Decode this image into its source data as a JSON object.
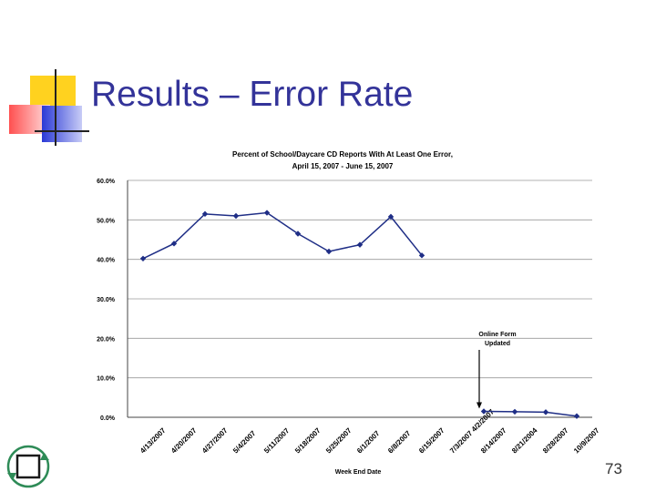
{
  "slide": {
    "title": "Results – Error Rate",
    "page_number": "73"
  },
  "colors": {
    "title": "#333399",
    "line": "#1f2e86",
    "deco_yellow": "#ffd21f",
    "deco_red": "#ff5050",
    "deco_blue": "#2a39d6"
  },
  "chart_data": {
    "type": "line",
    "title": "Percent of School/Daycare CD Reports With At Least One Error, April 15, 2007 - June 15, 2007",
    "title_lines": [
      "Percent of School/Daycare CD Reports With At Least One Error,",
      "April 15, 2007 - June 15, 2007"
    ],
    "xlabel": "Week End Date",
    "ylabel": "",
    "ylim": [
      0,
      60
    ],
    "yticks": [
      "0.0%",
      "10.0%",
      "20.0%",
      "30.0%",
      "40.0%",
      "50.0%",
      "60.0%"
    ],
    "grid": true,
    "categories": [
      "4/13/2007",
      "4/20/2007",
      "4/27/2007",
      "5/4/2007",
      "5/11/2007",
      "5/18/2007",
      "5/25/2007",
      "6/1/2007",
      "6/8/2007",
      "6/15/2007",
      "7/3/2007 4/2/2007",
      "8/14/2007",
      "8/21/2004",
      "8/28/2007",
      "10/9/2007"
    ],
    "series": [
      {
        "values": [
          40.2,
          44.0,
          51.5,
          51.0,
          51.8,
          46.5,
          42.0,
          43.7,
          50.8,
          41.0,
          null,
          1.5,
          1.4,
          1.3,
          0.3
        ]
      }
    ],
    "annotation": {
      "lines": [
        "Online Form",
        "Updated"
      ],
      "target_category": "8/14/2007"
    }
  }
}
